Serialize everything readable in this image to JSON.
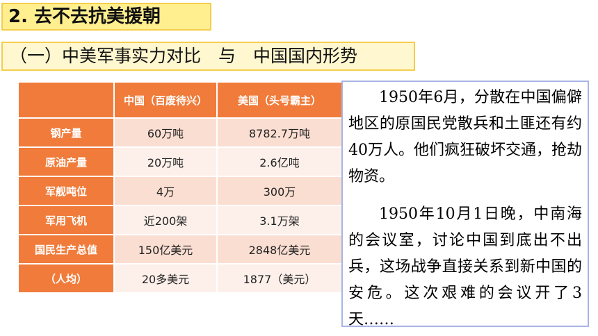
{
  "section_title": "2. 去不去抗美援朝",
  "subtitle": "（一）中美军事实力对比　与　中国国内形势",
  "comparison_table": {
    "headers": [
      "",
      "中国（百废待兴）",
      "美国（头号霸主）"
    ],
    "rows": [
      {
        "label": "钢产量",
        "china": "60万吨",
        "usa": "8782.7万吨"
      },
      {
        "label": "原油产量",
        "china": "20万吨",
        "usa": "2.6亿吨"
      },
      {
        "label": "军舰吨位",
        "china": "4万",
        "usa": "300万"
      },
      {
        "label": "军用飞机",
        "china": "近200架",
        "usa": "3.1万架"
      },
      {
        "label": "国民生产总值",
        "china": "150亿美元",
        "usa": "2848亿美元"
      },
      {
        "label": "（人均）",
        "china": "20多美元",
        "usa": "1877（美元）"
      }
    ]
  },
  "side_text": {
    "paragraph1": "1950年6月，分散在中国偏僻地区的原国民党散兵和土匪还有约40万人。他们疯狂破坏交通，抢劫物资。",
    "paragraph2": "1950年10月1日晚，中南海的会议室，讨论中国到底出不出兵，这场战争直接关系到新中国的安危。这次艰难的会议开了3天……"
  },
  "colors": {
    "header_fill": "#f07b3a",
    "row_odd": "#fbded2",
    "row_even": "#fdf0ea",
    "title_fill": "#ffef8f",
    "textbox_border": "#a8b4e6"
  }
}
